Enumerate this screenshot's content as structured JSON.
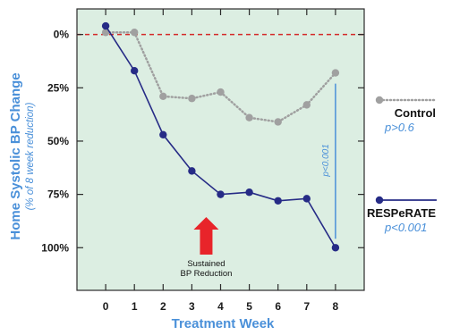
{
  "chart_data": {
    "type": "line",
    "xlabel": "Treatment Week",
    "ylabel": "Home Systolic BP Change",
    "ylabel_sub": "(% of 8 week  reduction)",
    "x": [
      0,
      1,
      2,
      3,
      4,
      5,
      6,
      7,
      8
    ],
    "xlim": [
      -1,
      9
    ],
    "ylim": [
      120,
      -12
    ],
    "y_inverted": true,
    "y_ticks": [
      0,
      25,
      50,
      75,
      100
    ],
    "y_tick_labels": [
      "0%",
      "25%",
      "50%",
      "75%",
      "100%"
    ],
    "reference_line": {
      "y": 0,
      "style": "dashed",
      "color": "#d42a2a"
    },
    "grid": false,
    "background": "#dceee2",
    "series": [
      {
        "name": "Control",
        "p_value": "p>0.6",
        "values": [
          -1,
          -1,
          29,
          30,
          27,
          39,
          41,
          33,
          18
        ],
        "color": "#a0a0a0",
        "style": "dotted",
        "marker": "circle"
      },
      {
        "name": "RESPeRATE",
        "p_value": "p<0.001",
        "values": [
          -4,
          17,
          47,
          64,
          75,
          74,
          78,
          77,
          100
        ],
        "color": "#262b86",
        "style": "solid",
        "marker": "circle"
      }
    ],
    "annotations": [
      {
        "text_lines": [
          "Sustained",
          "BP Reduction"
        ],
        "arrow_color": "#e8242a",
        "at_x": 3.5
      },
      {
        "text": "p<0.001",
        "vertical_bar_x": 8,
        "from_y": 18,
        "to_y": 100,
        "color": "#4a90d9"
      }
    ]
  }
}
